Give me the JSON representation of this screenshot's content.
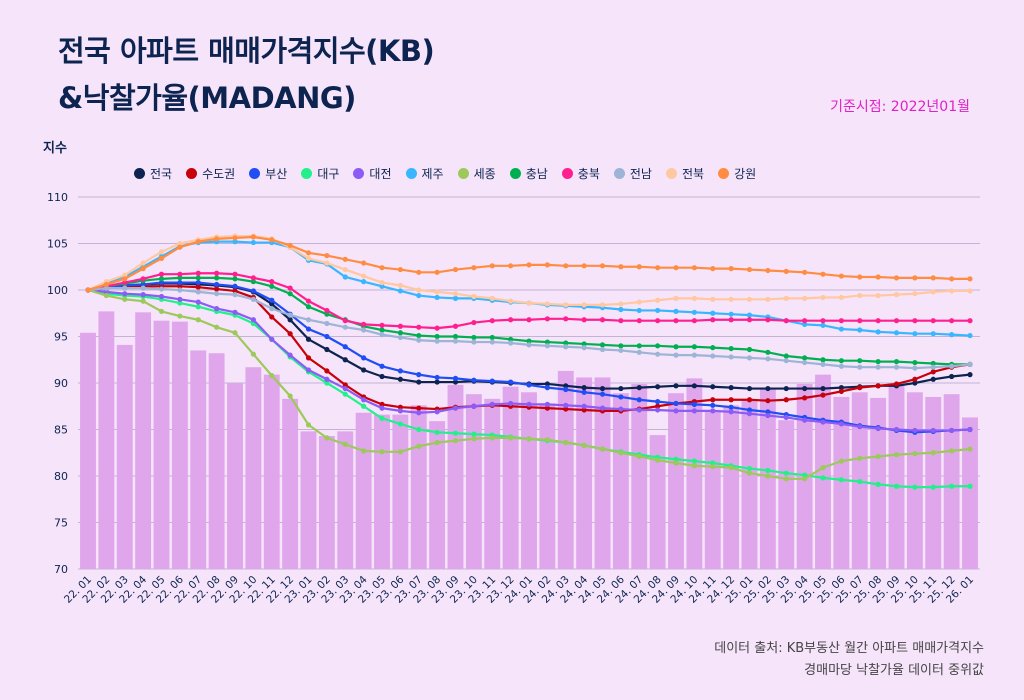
{
  "title_line1": "전국 아파트 매매가격지수(KB)",
  "title_line2": "&낙찰가율(MADANG)",
  "basis": "기준시점: 2022년01월",
  "footer_line1": "데이터 출처: KB부동산 월간 아파트 매매가격지수",
  "footer_line2": "경매마당 낙찰가율 데이터 중위값",
  "chart_data": {
    "type": "line",
    "title": "전국 아파트 매매가격지수(KB) &낙찰가율(MADANG)",
    "ylabel": "지수",
    "xlabel": "",
    "ylim": [
      70,
      110
    ],
    "yticks": [
      70,
      75,
      80,
      85,
      90,
      95,
      100,
      105,
      110
    ],
    "grid": true,
    "legend_position": "top",
    "categories": [
      "22. 01",
      "22. 02",
      "22. 03",
      "22. 04",
      "22. 05",
      "22. 06",
      "22. 07",
      "22. 08",
      "22. 09",
      "22. 10",
      "22. 11",
      "22. 12",
      "23. 01",
      "23. 02",
      "23. 03",
      "23. 04",
      "23. 05",
      "23. 06",
      "23. 07",
      "23. 08",
      "23. 09",
      "23. 10",
      "23. 11",
      "23. 12",
      "24. 01",
      "24. 02",
      "24. 03",
      "24. 04",
      "24. 05",
      "24. 06",
      "24. 07",
      "24. 08",
      "24. 09",
      "24. 10",
      "24. 11",
      "24. 12",
      "25. 01",
      "25. 02",
      "25. 03",
      "25. 04",
      "25. 05",
      "25. 06",
      "25. 07",
      "25. 08",
      "25. 09",
      "25. 10",
      "25. 11",
      "25. 12",
      "26. 01"
    ],
    "bars": {
      "name": "낙찰가율",
      "color": "#e0a6ec",
      "values": [
        95.4,
        97.7,
        94.1,
        97.6,
        96.7,
        96.6,
        93.5,
        93.2,
        90.0,
        91.7,
        90.9,
        88.3,
        84.8,
        84.3,
        84.8,
        86.8,
        86.6,
        86.6,
        87.6,
        85.9,
        89.8,
        88.8,
        88.3,
        89.6,
        89.0,
        87.8,
        91.3,
        90.6,
        90.6,
        88.9,
        89.9,
        84.4,
        88.9,
        90.5,
        87.1,
        87.6,
        88.2,
        89.4,
        86.0,
        89.9,
        90.9,
        88.5,
        89.0,
        88.4,
        89.9,
        89.0,
        88.5,
        88.8,
        86.3
      ]
    },
    "series": [
      {
        "name": "전국",
        "color": "#0d2350",
        "values": [
          100,
          100.3,
          100.5,
          100.6,
          100.7,
          100.7,
          100.6,
          100.5,
          100.3,
          99.8,
          98.5,
          96.8,
          94.7,
          93.6,
          92.5,
          91.4,
          90.7,
          90.4,
          90.1,
          90.1,
          90.1,
          90.2,
          90.1,
          90.0,
          89.9,
          89.9,
          89.7,
          89.5,
          89.4,
          89.4,
          89.5,
          89.6,
          89.7,
          89.7,
          89.6,
          89.5,
          89.4,
          89.4,
          89.4,
          89.4,
          89.4,
          89.5,
          89.6,
          89.7,
          89.7,
          90.0,
          90.4,
          90.7,
          90.9
        ]
      },
      {
        "name": "수도권",
        "color": "#c8000a",
        "values": [
          100,
          100.2,
          100.3,
          100.4,
          100.4,
          100.4,
          100.3,
          100.1,
          99.9,
          99.2,
          97.1,
          95.3,
          92.7,
          91.3,
          89.8,
          88.5,
          87.7,
          87.4,
          87.3,
          87.2,
          87.4,
          87.5,
          87.6,
          87.5,
          87.4,
          87.3,
          87.2,
          87.1,
          87.0,
          87.0,
          87.2,
          87.5,
          87.8,
          88.0,
          88.2,
          88.2,
          88.2,
          88.1,
          88.2,
          88.4,
          88.7,
          89.1,
          89.5,
          89.7,
          89.9,
          90.4,
          91.2,
          91.7,
          92.0
        ]
      },
      {
        "name": "부산",
        "color": "#1f4ef5",
        "values": [
          100,
          100.3,
          100.5,
          100.6,
          100.8,
          100.8,
          100.8,
          100.6,
          100.4,
          99.9,
          98.9,
          97.4,
          95.8,
          95.0,
          93.9,
          92.7,
          91.8,
          91.3,
          90.9,
          90.6,
          90.5,
          90.3,
          90.2,
          90.1,
          89.8,
          89.5,
          89.3,
          89.0,
          88.8,
          88.5,
          88.2,
          88.0,
          87.8,
          87.7,
          87.6,
          87.4,
          87.1,
          86.9,
          86.6,
          86.3,
          86.0,
          85.8,
          85.4,
          85.2,
          84.9,
          84.7,
          84.8,
          84.9,
          85.0
        ]
      },
      {
        "name": "대구",
        "color": "#22f08a",
        "values": [
          100,
          99.6,
          99.4,
          99.3,
          99.0,
          98.6,
          98.2,
          97.7,
          97.3,
          96.4,
          94.7,
          92.8,
          91.2,
          90.0,
          88.8,
          87.5,
          86.2,
          85.6,
          85.0,
          84.7,
          84.6,
          84.5,
          84.4,
          84.2,
          84.0,
          83.8,
          83.6,
          83.3,
          82.9,
          82.6,
          82.3,
          82.0,
          81.8,
          81.6,
          81.4,
          81.1,
          80.8,
          80.6,
          80.3,
          80.1,
          79.8,
          79.6,
          79.4,
          79.1,
          78.9,
          78.8,
          78.8,
          78.9,
          78.9
        ]
      },
      {
        "name": "대전",
        "color": "#8b5cf6",
        "values": [
          100,
          99.8,
          99.6,
          99.5,
          99.3,
          99.0,
          98.7,
          98.0,
          97.6,
          96.8,
          94.7,
          93.0,
          91.4,
          90.4,
          89.4,
          88.2,
          87.3,
          87.0,
          86.8,
          86.9,
          87.3,
          87.5,
          87.7,
          87.8,
          87.7,
          87.7,
          87.6,
          87.5,
          87.3,
          87.2,
          87.1,
          87.1,
          87.0,
          87.0,
          87.0,
          86.9,
          86.7,
          86.5,
          86.3,
          86.0,
          85.8,
          85.6,
          85.3,
          85.1,
          85.0,
          84.9,
          84.9,
          84.9,
          85.0
        ]
      },
      {
        "name": "제주",
        "color": "#38b6ff",
        "values": [
          100,
          100.7,
          101.4,
          102.5,
          103.6,
          104.7,
          105.1,
          105.2,
          105.2,
          105.1,
          105.1,
          104.6,
          103.2,
          102.8,
          101.4,
          100.9,
          100.4,
          99.9,
          99.4,
          99.2,
          99.1,
          99.1,
          98.9,
          98.7,
          98.6,
          98.4,
          98.3,
          98.2,
          98.1,
          97.9,
          97.8,
          97.8,
          97.7,
          97.6,
          97.5,
          97.4,
          97.3,
          97.1,
          96.7,
          96.3,
          96.2,
          95.8,
          95.7,
          95.5,
          95.4,
          95.3,
          95.3,
          95.2,
          95.1
        ]
      },
      {
        "name": "세종",
        "color": "#9cc95a",
        "values": [
          100,
          99.4,
          99.0,
          98.8,
          97.7,
          97.2,
          96.8,
          96.0,
          95.4,
          93.1,
          90.8,
          88.6,
          85.5,
          84.1,
          83.4,
          82.7,
          82.6,
          82.6,
          83.2,
          83.6,
          83.8,
          84.0,
          84.1,
          84.1,
          84.0,
          83.9,
          83.6,
          83.3,
          82.9,
          82.5,
          82.1,
          81.7,
          81.4,
          81.1,
          81.0,
          80.9,
          80.3,
          80.0,
          79.7,
          79.7,
          80.9,
          81.6,
          81.9,
          82.1,
          82.3,
          82.4,
          82.5,
          82.7,
          82.9
        ]
      },
      {
        "name": "충남",
        "color": "#00b050",
        "values": [
          100,
          100.4,
          100.7,
          101.0,
          101.2,
          101.3,
          101.3,
          101.3,
          101.2,
          100.9,
          100.4,
          99.6,
          98.2,
          97.4,
          96.8,
          96.1,
          95.7,
          95.4,
          95.1,
          95.0,
          95.0,
          94.9,
          94.9,
          94.7,
          94.5,
          94.4,
          94.3,
          94.2,
          94.1,
          94.0,
          94.0,
          94.0,
          93.9,
          93.9,
          93.8,
          93.7,
          93.6,
          93.3,
          92.9,
          92.7,
          92.5,
          92.4,
          92.4,
          92.3,
          92.3,
          92.2,
          92.1,
          92.0,
          92.0
        ]
      },
      {
        "name": "충북",
        "color": "#ff1f8e",
        "values": [
          100,
          100.4,
          100.8,
          101.2,
          101.7,
          101.7,
          101.8,
          101.8,
          101.7,
          101.3,
          100.9,
          100.2,
          98.8,
          97.8,
          96.7,
          96.3,
          96.2,
          96.1,
          96.0,
          95.9,
          96.1,
          96.5,
          96.7,
          96.8,
          96.8,
          96.9,
          96.9,
          96.8,
          96.8,
          96.7,
          96.7,
          96.7,
          96.7,
          96.7,
          96.8,
          96.8,
          96.8,
          96.8,
          96.7,
          96.7,
          96.7,
          96.7,
          96.7,
          96.7,
          96.7,
          96.7,
          96.7,
          96.7,
          96.7
        ]
      },
      {
        "name": "전남",
        "color": "#9db4d6",
        "values": [
          100,
          100.2,
          100.2,
          100.2,
          100.1,
          100.0,
          99.8,
          99.6,
          99.5,
          99.0,
          98.0,
          97.3,
          96.8,
          96.4,
          96.0,
          95.7,
          95.2,
          94.9,
          94.6,
          94.5,
          94.5,
          94.4,
          94.4,
          94.3,
          94.1,
          94.0,
          93.9,
          93.8,
          93.6,
          93.5,
          93.3,
          93.1,
          93.0,
          93.0,
          92.9,
          92.8,
          92.7,
          92.6,
          92.4,
          92.2,
          92.0,
          91.8,
          91.7,
          91.7,
          91.7,
          91.6,
          91.7,
          91.8,
          92.0
        ]
      },
      {
        "name": "전북",
        "color": "#ffc8a0",
        "values": [
          100,
          100.9,
          101.6,
          102.9,
          104.1,
          105.0,
          105.4,
          105.7,
          105.8,
          105.8,
          105.5,
          104.6,
          103.4,
          102.9,
          102.2,
          101.5,
          100.8,
          100.5,
          100.0,
          99.8,
          99.6,
          99.3,
          99.1,
          98.8,
          98.6,
          98.5,
          98.4,
          98.4,
          98.4,
          98.5,
          98.7,
          98.9,
          99.1,
          99.1,
          99.0,
          99.0,
          99.0,
          99.0,
          99.1,
          99.1,
          99.2,
          99.2,
          99.4,
          99.4,
          99.5,
          99.6,
          99.8,
          99.9,
          99.9
        ]
      },
      {
        "name": "강원",
        "color": "#ff8c42",
        "values": [
          100,
          100.6,
          101.2,
          102.3,
          103.4,
          104.6,
          105.2,
          105.5,
          105.6,
          105.7,
          105.4,
          104.8,
          104.0,
          103.7,
          103.3,
          102.9,
          102.4,
          102.2,
          101.9,
          101.9,
          102.2,
          102.4,
          102.6,
          102.6,
          102.7,
          102.7,
          102.6,
          102.6,
          102.6,
          102.5,
          102.5,
          102.4,
          102.4,
          102.4,
          102.3,
          102.3,
          102.2,
          102.1,
          102.0,
          101.9,
          101.7,
          101.5,
          101.4,
          101.4,
          101.3,
          101.3,
          101.3,
          101.2,
          101.2
        ]
      }
    ]
  }
}
